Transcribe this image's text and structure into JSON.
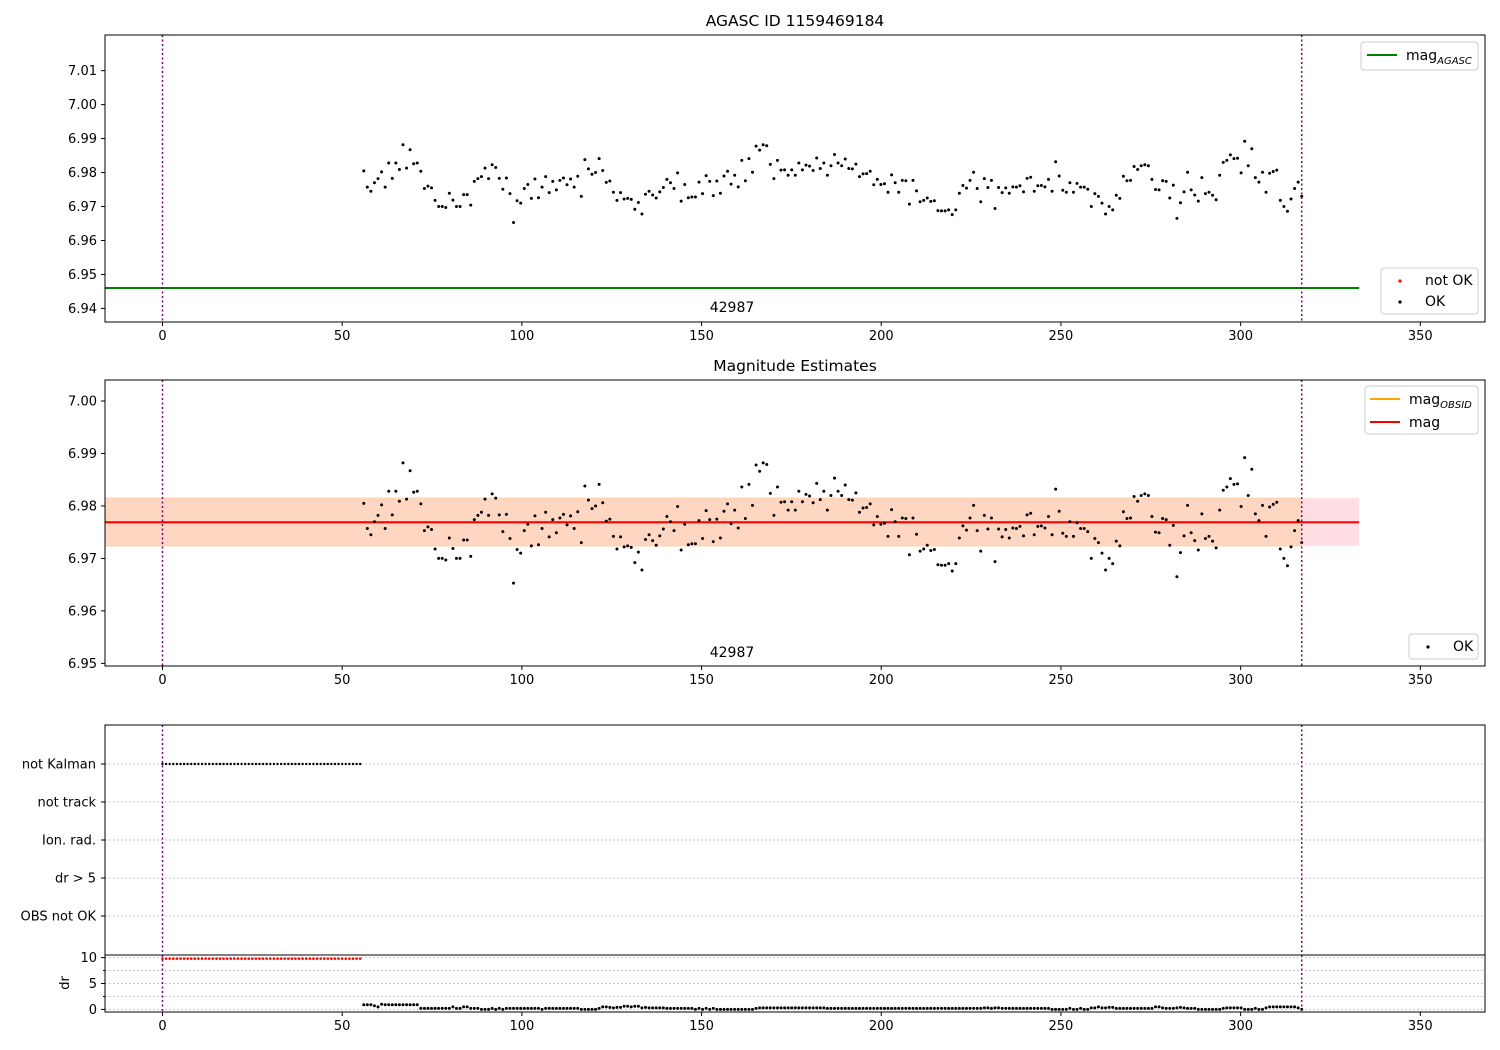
{
  "chart_data": [
    {
      "type": "scatter",
      "title": "AGASC ID 1159469184",
      "xlim": [
        -16,
        368
      ],
      "ylim": [
        6.936,
        7.0205
      ],
      "xticks": [
        "0",
        "50",
        "100",
        "150",
        "200",
        "250",
        "300",
        "350"
      ],
      "yticks": [
        "6.94",
        "6.95",
        "6.96",
        "6.97",
        "6.98",
        "6.99",
        "7.00",
        "7.01"
      ],
      "grid": false,
      "obsid_label": "42987",
      "vlines": [
        0,
        317
      ],
      "hlines": [
        {
          "name": "mag",
          "subscript": "AGASC",
          "y": 6.946,
          "x_range": [
            -16,
            333
          ],
          "color": "#008000"
        }
      ],
      "legend": [
        {
          "name": "mag",
          "subscript": "AGASC",
          "kind": "line",
          "color": "#008000",
          "placement": "top-right"
        },
        {
          "name": "not OK",
          "kind": "point",
          "color": "#ff0000",
          "placement": "bottom-right"
        },
        {
          "name": "OK",
          "kind": "point",
          "color": "#000000",
          "placement": "bottom-right"
        }
      ],
      "series": [
        {
          "name": "OK",
          "color": "#000000",
          "x_range": [
            56,
            317
          ],
          "values": [
            6.9805,
            6.9757,
            6.9745,
            6.977,
            6.9782,
            6.9802,
            6.9757,
            6.9828,
            6.9783,
            6.9828,
            6.9809,
            6.9882,
            6.9813,
            6.9867,
            6.9826,
            6.9828,
            6.9804,
            6.9753,
            6.976,
            6.9755,
            6.9718,
            6.97,
            6.97,
            6.9697,
            6.9739,
            6.9719,
            6.97,
            6.97,
            6.9735,
            6.9735,
            6.9704,
            6.9774,
            6.9782,
            6.9788,
            6.9813,
            6.9782,
            6.9823,
            6.9815,
            6.9783,
            6.9751,
            6.9784,
            6.9738,
            6.9653,
            6.9717,
            6.971,
            6.9753,
            6.9765,
            6.9724,
            6.9781,
            6.9726,
            6.9757,
            6.9788,
            6.9741,
            6.9774,
            6.9749,
            6.9777,
            6.9784,
            6.9764,
            6.9781,
            6.9757,
            6.9789,
            6.973,
            6.9838,
            6.9811,
            6.9795,
            6.98,
            6.9841,
            6.9806,
            6.9771,
            6.9775,
            6.9742,
            6.9718,
            6.9741,
            6.9722,
            6.9724,
            6.9721,
            6.9692,
            6.9712,
            6.9678,
            6.9736,
            6.9745,
            6.9734,
            6.9725,
            6.9743,
            6.9756,
            6.978,
            6.977,
            6.9753,
            6.9799,
            6.9716,
            6.9765,
            6.9726,
            6.9728,
            6.9728,
            6.9772,
            6.9738,
            6.9791,
            6.9774,
            6.9732,
            6.9775,
            6.9739,
            6.979,
            6.9804,
            6.9766,
            6.9792,
            6.9758,
            6.9836,
            6.9776,
            6.9841,
            6.9801,
            6.9878,
            6.9866,
            6.9882,
            6.9879,
            6.9824,
            6.9782,
            6.9836,
            6.9807,
            6.9808,
            6.9792,
            6.9808,
            6.9792,
            6.9828,
            6.9808,
            6.9822,
            6.9819,
            6.9806,
            6.9843,
            6.9812,
            6.9828,
            6.9792,
            6.982,
            6.9853,
            6.9828,
            6.982,
            6.984,
            6.9812,
            6.9811,
            6.9825,
            6.9788,
            6.9796,
            6.9797,
            6.9804,
            6.9764,
            6.978,
            6.9765,
            6.9767,
            6.9742,
            6.9793,
            6.977,
            6.9742,
            6.9777,
            6.9776,
            6.9707,
            6.9777,
            6.9746,
            6.9714,
            6.9718,
            6.9725,
            6.9715,
            6.9717,
            6.9688,
            6.9687,
            6.9687,
            6.969,
            6.9676,
            6.969,
            6.9739,
            6.9762,
            6.9754,
            6.9777,
            6.9801,
            6.9753,
            6.9714,
            6.9782,
            6.9756,
            6.9777,
            6.9694,
            6.9756,
            6.9741,
            6.9755,
            6.9739,
            6.9758,
            6.9757,
            6.9761,
            6.9743,
            6.9783,
            6.9786,
            6.9745,
            6.9761,
            6.9762,
            6.9758,
            6.978,
            6.9745,
            6.9832,
            6.979,
            6.9748,
            6.9742,
            6.977,
            6.9742,
            6.9768,
            6.9757,
            6.9757,
            6.9751,
            6.97,
            6.9738,
            6.973,
            6.971,
            6.9678,
            6.97,
            6.969,
            6.9733,
            6.9724,
            6.9789,
            6.9776,
            6.9777,
            6.9818,
            6.9809,
            6.982,
            6.9823,
            6.982,
            6.978,
            6.975,
            6.9749,
            6.9776,
            6.9774,
            6.9725,
            6.9763,
            6.9665,
            6.9711,
            6.9743,
            6.9801,
            6.9749,
            6.9734,
            6.9716,
            6.9785,
            6.9738,
            6.9742,
            6.9733,
            6.972,
            6.9792,
            6.983,
            6.9836,
            6.9852,
            6.9841,
            6.9842,
            6.9799,
            6.9892,
            6.982,
            6.987,
            6.9785,
            6.9772,
            6.9801,
            6.9742,
            6.9798,
            6.9803,
            6.9807,
            6.9718,
            6.97,
            6.9686,
            6.9722,
            6.9753,
            6.9772,
            6.973
          ]
        }
      ]
    },
    {
      "type": "scatter",
      "title": "Magnitude Estimates",
      "xlim": [
        -16,
        368
      ],
      "ylim": [
        6.9495,
        7.004
      ],
      "xticks": [
        "0",
        "50",
        "100",
        "150",
        "200",
        "250",
        "300",
        "350"
      ],
      "yticks": [
        "6.95",
        "6.96",
        "6.97",
        "6.98",
        "6.99",
        "7.00"
      ],
      "grid": false,
      "obsid_label": "42987",
      "vlines": [
        0,
        317
      ],
      "bands": [
        {
          "name": "mag",
          "y_range": [
            6.9724,
            6.9815
          ],
          "x_range": [
            -16,
            333
          ],
          "color": "#ffdde3"
        },
        {
          "name": "mag",
          "subscript": "OBSID",
          "y_range": [
            6.9724,
            6.9815
          ],
          "x_range": [
            -16,
            317
          ],
          "color": "#ffd6c2"
        }
      ],
      "hlines": [
        {
          "name": "mag",
          "subscript": "OBSID",
          "y": 6.9769,
          "x_range": [
            -16,
            317
          ],
          "color": "#ffa500"
        },
        {
          "name": "mag",
          "y": 6.9769,
          "x_range": [
            -16,
            333
          ],
          "color": "#ff0000"
        }
      ],
      "legend": [
        {
          "name": "mag",
          "subscript": "OBSID",
          "kind": "line",
          "color": "#ffa500",
          "placement": "top-right"
        },
        {
          "name": "mag",
          "kind": "line",
          "color": "#ff0000",
          "placement": "top-right"
        },
        {
          "name": "OK",
          "kind": "point",
          "color": "#000000",
          "placement": "bottom-right"
        }
      ],
      "series": [
        {
          "name": "OK",
          "color": "#000000",
          "same_as_panel": 0
        }
      ]
    },
    {
      "type": "scatter",
      "title": "",
      "xlim": [
        -16,
        368
      ],
      "categories": [
        "not Kalman",
        "not track",
        "Ion. rad.",
        "dr > 5",
        "OBS not OK"
      ],
      "flag_series": [
        {
          "category": "not Kalman",
          "x_range": [
            0,
            55
          ],
          "color": "#000000"
        }
      ],
      "grid": true,
      "vlines": [
        0,
        317
      ]
    },
    {
      "type": "scatter",
      "title": "",
      "ylabel": "dr",
      "xlim": [
        -16,
        368
      ],
      "ylim": [
        -0.5,
        10.5
      ],
      "xticks": [
        "0",
        "50",
        "100",
        "150",
        "200",
        "250",
        "300",
        "350"
      ],
      "yticks": [
        "0",
        "5",
        "10"
      ],
      "grid": true,
      "vlines": [
        0,
        317
      ],
      "series": [
        {
          "name": "not OK",
          "color": "#ff0000",
          "x_range": [
            0,
            55
          ],
          "value": 9.8
        },
        {
          "name": "OK",
          "color": "#000000",
          "x_range": [
            56,
            317
          ],
          "values": [
            0.9,
            0.9,
            0.9,
            0.7,
            0.5,
            1.0,
            0.9,
            0.9,
            0.9,
            0.9,
            0.9,
            0.9,
            0.9,
            0.9,
            0.9,
            0.9,
            0.2,
            0.2,
            0.2,
            0.2,
            0.2,
            0.2,
            0.2,
            0.2,
            0.2,
            0.5,
            0.2,
            0.2,
            0.5,
            0.5,
            0.2,
            0.2,
            0.2,
            0.0,
            0.0,
            0.0,
            0.2,
            0.0,
            0.2,
            0.0,
            0.2,
            0.2,
            0.2,
            0.2,
            0.2,
            0.2,
            0.2,
            0.2,
            0.2,
            0.2,
            0.0,
            0.2,
            0.2,
            0.2,
            0.2,
            0.2,
            0.2,
            0.2,
            0.2,
            0.2,
            0.2,
            0.0,
            0.0,
            0.0,
            0.0,
            0.0,
            0.2,
            0.5,
            0.5,
            0.4,
            0.3,
            0.4,
            0.4,
            0.6,
            0.6,
            0.5,
            0.6,
            0.6,
            0.3,
            0.4,
            0.3,
            0.3,
            0.3,
            0.3,
            0.3,
            0.2,
            0.2,
            0.2,
            0.2,
            0.2,
            0.2,
            0.2,
            0.2,
            0.0,
            0.2,
            0.0,
            0.2,
            0.0,
            0.2,
            0.0,
            0.0,
            0.0,
            0.0,
            0.0,
            0.0,
            0.0,
            0.0,
            0.0,
            0.0,
            0.0,
            0.2,
            0.3,
            0.3,
            0.3,
            0.3,
            0.3,
            0.3,
            0.3,
            0.3,
            0.3,
            0.3,
            0.3,
            0.3,
            0.3,
            0.3,
            0.3,
            0.3,
            0.3,
            0.3,
            0.3,
            0.2,
            0.2,
            0.2,
            0.2,
            0.2,
            0.2,
            0.2,
            0.2,
            0.2,
            0.2,
            0.2,
            0.2,
            0.2,
            0.2,
            0.2,
            0.2,
            0.2,
            0.2,
            0.2,
            0.2,
            0.2,
            0.2,
            0.2,
            0.2,
            0.2,
            0.2,
            0.2,
            0.2,
            0.2,
            0.2,
            0.2,
            0.2,
            0.2,
            0.2,
            0.2,
            0.2,
            0.2,
            0.2,
            0.2,
            0.2,
            0.2,
            0.2,
            0.2,
            0.2,
            0.3,
            0.3,
            0.2,
            0.3,
            0.3,
            0.2,
            0.2,
            0.2,
            0.2,
            0.2,
            0.2,
            0.2,
            0.2,
            0.2,
            0.2,
            0.2,
            0.2,
            0.2,
            0.2,
            0.0,
            0.0,
            0.0,
            0.0,
            0.0,
            0.2,
            0.0,
            0.0,
            0.2,
            0.0,
            0.0,
            0.3,
            0.3,
            0.5,
            0.3,
            0.3,
            0.4,
            0.4,
            0.2,
            0.2,
            0.2,
            0.2,
            0.2,
            0.2,
            0.2,
            0.2,
            0.2,
            0.2,
            0.2,
            0.5,
            0.5,
            0.3,
            0.2,
            0.2,
            0.2,
            0.3,
            0.4,
            0.3,
            0.2,
            0.2,
            0.2,
            0.0,
            0.0,
            0.0,
            0.0,
            0.0,
            0.0,
            0.0,
            0.2,
            0.3,
            0.3,
            0.3,
            0.3,
            0.3,
            0.0,
            0.0,
            0.0,
            0.2,
            0.0,
            0.0,
            0.3,
            0.5,
            0.5,
            0.5,
            0.5,
            0.5,
            0.5,
            0.5,
            0.5,
            0.3,
            0.0
          ]
        }
      ]
    }
  ]
}
